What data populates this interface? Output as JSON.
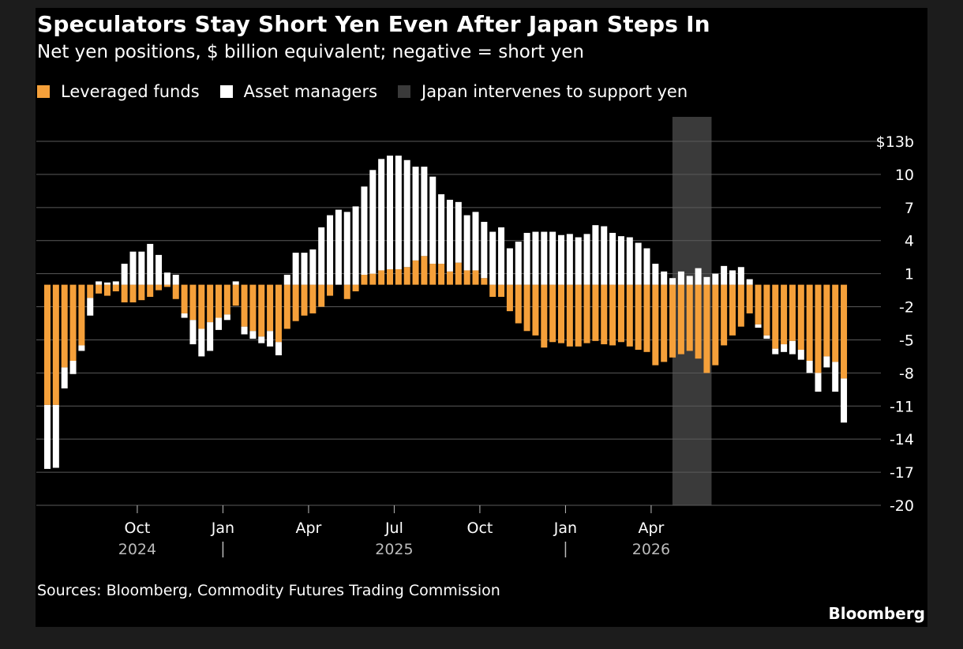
{
  "header": {
    "title": "Speculators Stay Short Yen Even After Japan Steps In",
    "subtitle": "Net yen positions, $ billion equivalent; negative = short yen"
  },
  "legend": {
    "leveraged_label": "Leveraged funds",
    "asset_label": "Asset managers",
    "intervention_label": "Japan intervenes to support yen"
  },
  "footer": {
    "source": "Sources: Bloomberg, Commodity Futures Trading Commission",
    "brand": "Bloomberg"
  },
  "colors": {
    "background": "#000000",
    "leveraged": "#f5a03a",
    "asset": "#ffffff",
    "intervention": "#3a3a3a",
    "grid": "#5a5a5a",
    "axis_text": "#ffffff",
    "year_text": "#bbbbbb"
  },
  "chart_data": {
    "type": "bar",
    "stacked": true,
    "ylim": [
      -20,
      13
    ],
    "yticks": [
      {
        "value": 13,
        "label": "$13b"
      },
      {
        "value": 10,
        "label": "10"
      },
      {
        "value": 7,
        "label": "7"
      },
      {
        "value": 4,
        "label": "4"
      },
      {
        "value": 1,
        "label": "1"
      },
      {
        "value": -2,
        "label": "-2"
      },
      {
        "value": -5,
        "label": "-5"
      },
      {
        "value": -8,
        "label": "-8"
      },
      {
        "value": -11,
        "label": "-11"
      },
      {
        "value": -14,
        "label": "-14"
      },
      {
        "value": -17,
        "label": "-17"
      },
      {
        "value": -20,
        "label": "-20"
      }
    ],
    "x_ticks": [
      {
        "index": 10.5,
        "label": "Oct",
        "year": "2024",
        "divider": false
      },
      {
        "index": 20.5,
        "label": "Jan",
        "year": "",
        "divider": true
      },
      {
        "index": 30.5,
        "label": "Apr",
        "year": "",
        "divider": false
      },
      {
        "index": 40.5,
        "label": "Jul",
        "year": "2025",
        "divider": false
      },
      {
        "index": 50.5,
        "label": "Oct",
        "year": "",
        "divider": false
      },
      {
        "index": 60.5,
        "label": "Jan",
        "year": "",
        "divider": true
      },
      {
        "index": 70.5,
        "label": "Apr",
        "year": "2026",
        "divider": false
      }
    ],
    "intervention_range": [
      74,
      77
    ],
    "series": [
      {
        "name": "Leveraged funds",
        "values": [
          -10.9,
          -10.9,
          -7.5,
          -6.9,
          -5.5,
          -1.2,
          -0.8,
          -1.0,
          -0.6,
          -1.6,
          -1.6,
          -1.4,
          -1.1,
          -0.5,
          -0.2,
          -1.3,
          -2.6,
          -3.2,
          -4.0,
          -3.4,
          -3.0,
          -2.7,
          -1.9,
          -3.8,
          -4.2,
          -4.7,
          -4.2,
          -5.2,
          -4.0,
          -3.3,
          -2.8,
          -2.6,
          -2.0,
          -1.0,
          0.0,
          -1.3,
          -0.6,
          0.9,
          1.0,
          1.3,
          1.4,
          1.4,
          1.6,
          2.2,
          2.6,
          1.9,
          1.9,
          1.2,
          2.0,
          1.3,
          1.3,
          0.6,
          -1.1,
          -1.1,
          -2.4,
          -3.5,
          -4.2,
          -4.6,
          -5.7,
          -5.2,
          -5.3,
          -5.6,
          -5.6,
          -5.3,
          -5.1,
          -5.4,
          -5.5,
          -5.2,
          -5.6,
          -5.9,
          -6.1,
          -7.3,
          -7.0,
          -6.6,
          -6.3,
          -6.0,
          -6.7,
          -8.0,
          -7.3,
          -5.5,
          -4.6,
          -3.8,
          -2.6,
          -3.6,
          -4.6,
          -5.8,
          -5.4,
          -5.1,
          -5.9,
          -6.9,
          -8.0,
          -6.5,
          -7.0,
          -8.5
        ]
      },
      {
        "name": "Asset managers",
        "values": [
          -5.8,
          -5.7,
          -1.9,
          -1.2,
          -0.5,
          -1.6,
          0.3,
          0.2,
          0.3,
          1.9,
          3.0,
          3.0,
          3.7,
          2.7,
          1.1,
          0.9,
          -0.4,
          -2.2,
          -2.5,
          -2.6,
          -1.1,
          -0.5,
          0.3,
          -0.7,
          -0.7,
          -0.6,
          -1.4,
          -1.2,
          0.9,
          2.9,
          2.9,
          3.2,
          5.2,
          6.3,
          6.8,
          6.6,
          7.1,
          8.0,
          9.4,
          10.1,
          10.3,
          10.3,
          9.7,
          8.5,
          8.1,
          7.9,
          6.3,
          6.5,
          5.5,
          5.0,
          5.3,
          5.1,
          4.8,
          5.2,
          3.3,
          3.9,
          4.7,
          4.8,
          4.8,
          4.8,
          4.5,
          4.6,
          4.3,
          4.6,
          5.4,
          5.3,
          4.7,
          4.4,
          4.3,
          3.8,
          3.3,
          1.9,
          1.2,
          0.6,
          1.2,
          0.8,
          1.5,
          0.7,
          1.0,
          1.7,
          1.3,
          1.6,
          0.5,
          -0.3,
          -0.3,
          -0.5,
          -0.7,
          -1.2,
          -0.9,
          -1.1,
          -1.7,
          -1.0,
          -2.7,
          -4.0
        ]
      }
    ]
  }
}
